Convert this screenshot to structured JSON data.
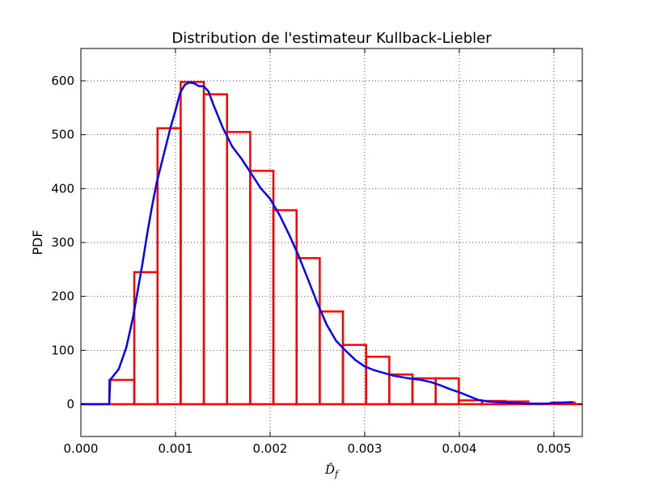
{
  "chart_data": {
    "type": "bar",
    "title": "Distribution de l'estimateur Kullback-Liebler",
    "xlabel": "D̂_f",
    "ylabel": "PDF",
    "xlim": [
      0.0,
      0.0053
    ],
    "ylim": [
      -60,
      660
    ],
    "grid": true,
    "legend": "none",
    "x_ticks": [
      "0.000",
      "0.001",
      "0.002",
      "0.003",
      "0.004",
      "0.005"
    ],
    "x_tick_values": [
      0.0,
      0.001,
      0.002,
      0.003,
      0.004,
      0.005
    ],
    "y_ticks": [
      "0",
      "100",
      "200",
      "300",
      "400",
      "500",
      "600"
    ],
    "y_tick_values": [
      0,
      100,
      200,
      300,
      400,
      500,
      600
    ],
    "series": [
      {
        "kind": "histogram-step",
        "color": "#ff0000",
        "bin_edges": [
          0.0003,
          0.000565,
          0.00081,
          0.001055,
          0.0013,
          0.001545,
          0.00179,
          0.002035,
          0.00228,
          0.002525,
          0.00277,
          0.003015,
          0.00326,
          0.003505,
          0.00375,
          0.003995,
          0.00424,
          0.004485,
          0.00473,
          0.004975,
          0.00522
        ],
        "values": [
          45,
          245,
          512,
          598,
          575,
          505,
          433,
          360,
          271,
          172,
          110,
          88,
          55,
          48,
          48,
          7,
          6,
          5,
          1,
          3
        ],
        "baseline_left": 0.0,
        "baseline_right": 0.0053
      },
      {
        "kind": "density-line",
        "color": "#0000ff",
        "x": [
          0.0,
          0.0003,
          0.00031,
          0.0004,
          0.00048,
          0.00055,
          0.0006,
          0.00065,
          0.0007,
          0.00075,
          0.0008,
          0.00085,
          0.0009,
          0.00095,
          0.001,
          0.00105,
          0.0011,
          0.00115,
          0.0012,
          0.00125,
          0.0013,
          0.00135,
          0.0014,
          0.0015,
          0.0016,
          0.0017,
          0.0018,
          0.0019,
          0.002,
          0.0021,
          0.0022,
          0.0023,
          0.0024,
          0.0025,
          0.0026,
          0.0027,
          0.0028,
          0.0029,
          0.003,
          0.0031,
          0.0032,
          0.0033,
          0.0034,
          0.0035,
          0.0036,
          0.0037,
          0.0038,
          0.0039,
          0.004,
          0.0041,
          0.0042,
          0.0043,
          0.0044,
          0.0045,
          0.0046,
          0.0047,
          0.0048,
          0.0049,
          0.005,
          0.0051,
          0.0052
        ],
        "y": [
          0,
          0,
          45,
          65,
          105,
          160,
          210,
          260,
          315,
          365,
          410,
          445,
          480,
          515,
          545,
          578,
          593,
          597,
          595,
          590,
          590,
          580,
          556,
          513,
          478,
          455,
          428,
          401,
          381,
          351,
          315,
          276,
          232,
          187,
          147,
          117,
          99,
          82,
          70,
          63,
          58,
          53,
          50,
          47,
          45,
          41,
          35,
          28,
          22,
          15,
          8,
          5,
          4,
          3,
          2,
          1,
          1,
          1,
          2,
          3,
          4
        ]
      }
    ]
  }
}
